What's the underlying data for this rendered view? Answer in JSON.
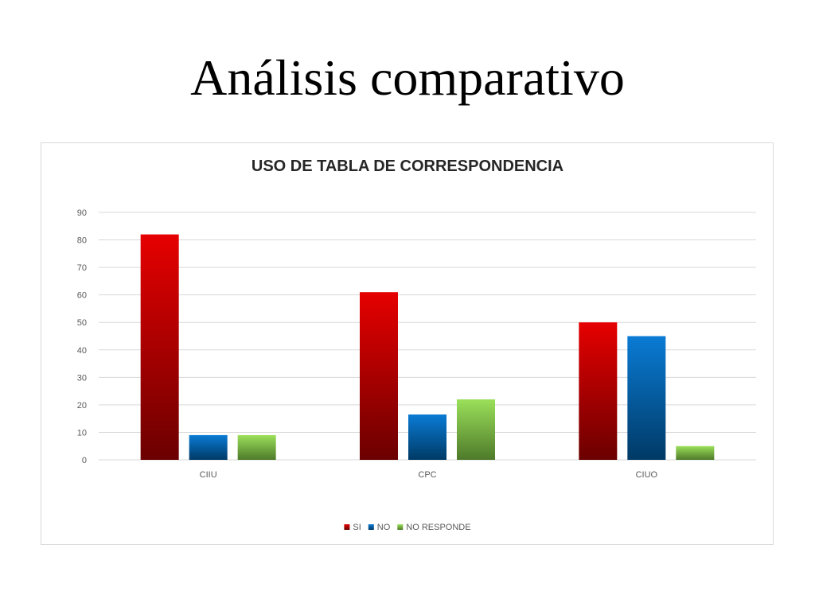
{
  "slide": {
    "title": "Análisis comparativo"
  },
  "colors": {
    "SI": [
      "#e60000",
      "#6b0000"
    ],
    "NO": [
      "#0a7bd4",
      "#003a66"
    ],
    "NO RESPONDE": [
      "#9be05a",
      "#4e7a2a"
    ]
  },
  "chart_data": {
    "type": "bar",
    "title": "USO DE TABLA DE CORRESPONDENCIA",
    "xlabel": "",
    "ylabel": "",
    "categories": [
      "CIIU",
      "CPC",
      "CIUO"
    ],
    "series": [
      {
        "name": "SI",
        "values": [
          82,
          61,
          50
        ]
      },
      {
        "name": "NO",
        "values": [
          9,
          16.5,
          45
        ]
      },
      {
        "name": "NO RESPONDE",
        "values": [
          9,
          22,
          5
        ]
      }
    ],
    "ylim": [
      0,
      90
    ],
    "yticks": [
      0,
      10,
      20,
      30,
      40,
      50,
      60,
      70,
      80,
      90
    ],
    "grid": true,
    "legend": "bottom"
  }
}
